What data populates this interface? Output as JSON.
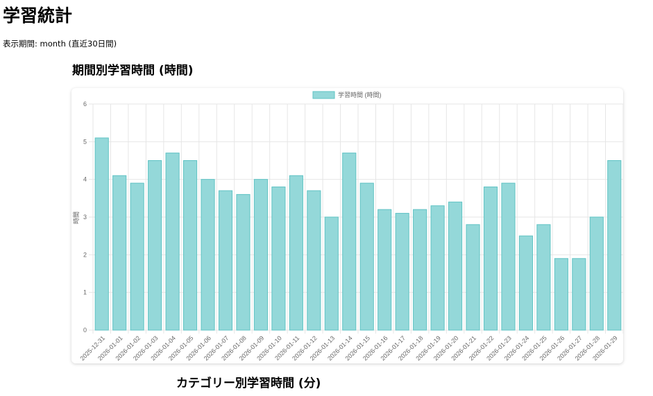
{
  "page": {
    "title": "学習統計",
    "period_label": "表示期間: month (直近30日間)",
    "chart_heading": "期間別学習時間 (時間)",
    "category_heading": "カテゴリー別学習時間 (分)"
  },
  "colors": {
    "bar_fill": "#94d8d9",
    "bar_stroke": "#5fc3c4",
    "grid": "#e6e6e6"
  },
  "chart_data": {
    "type": "bar",
    "title": "",
    "legend_label": "学習時間 (時間)",
    "legend_position": "top",
    "xlabel": "",
    "ylabel": "時間",
    "ylim": [
      0,
      6
    ],
    "yticks": [
      0,
      1,
      2,
      3,
      4,
      5,
      6
    ],
    "grid": true,
    "categories": [
      "2025-12-31",
      "2026-01-01",
      "2026-01-02",
      "2026-01-03",
      "2026-01-04",
      "2026-01-05",
      "2026-01-06",
      "2026-01-07",
      "2026-01-08",
      "2026-01-09",
      "2026-01-10",
      "2026-01-11",
      "2026-01-12",
      "2026-01-13",
      "2026-01-14",
      "2026-01-15",
      "2026-01-16",
      "2026-01-17",
      "2026-01-18",
      "2026-01-19",
      "2026-01-20",
      "2026-01-21",
      "2026-01-22",
      "2026-01-23",
      "2026-01-24",
      "2026-01-25",
      "2026-01-26",
      "2026-01-27",
      "2026-01-28",
      "2026-01-29"
    ],
    "values": [
      5.1,
      4.1,
      3.9,
      4.5,
      4.7,
      4.5,
      4.0,
      3.7,
      3.6,
      4.0,
      3.8,
      4.1,
      3.7,
      3.0,
      4.7,
      3.9,
      3.2,
      3.1,
      3.2,
      3.3,
      3.4,
      2.8,
      3.8,
      3.9,
      2.5,
      2.8,
      1.9,
      1.9,
      3.0,
      4.5
    ]
  }
}
